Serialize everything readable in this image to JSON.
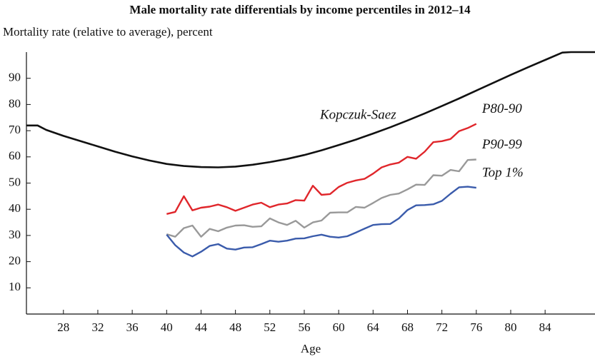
{
  "chart_data": {
    "type": "line",
    "title": "Male mortality rate differentials by income percentiles in 2012–14",
    "y_axis_label": "Mortality rate (relative to average), percent",
    "x_axis_label": "Age",
    "xlim": [
      23.7,
      89.8
    ],
    "xticks": [
      28,
      32,
      36,
      40,
      44,
      48,
      52,
      56,
      60,
      64,
      68,
      72,
      76,
      80,
      84
    ],
    "ylim": [
      0,
      100
    ],
    "yticks": [
      10,
      20,
      30,
      40,
      50,
      60,
      70,
      80,
      90
    ],
    "series": [
      {
        "name": "Kopczuk-Saez",
        "color": "#111111",
        "x": [
          23.7,
          25,
          26,
          28,
          30,
          32,
          34,
          36,
          38,
          40,
          42,
          44,
          46,
          48,
          50,
          52,
          54,
          56,
          58,
          60,
          62,
          64,
          66,
          68,
          70,
          72,
          74,
          76,
          78,
          80,
          82,
          84,
          86,
          87,
          89.8
        ],
        "values": [
          72,
          72,
          70.3,
          68,
          66,
          64,
          62,
          60.2,
          58.6,
          57.3,
          56.5,
          56.1,
          56,
          56.3,
          57,
          58,
          59.2,
          60.7,
          62.5,
          64.5,
          66.6,
          68.9,
          71.3,
          73.9,
          76.6,
          79.4,
          82.3,
          85.3,
          88.3,
          91.3,
          94.2,
          97,
          99.8,
          100,
          100
        ]
      },
      {
        "name": "P80-90",
        "color": "#e0262b",
        "x": [
          40,
          41,
          42,
          43,
          44,
          45,
          46,
          47,
          48,
          49,
          50,
          51,
          52,
          53,
          54,
          55,
          56,
          57,
          58,
          59,
          60,
          61,
          62,
          63,
          64,
          65,
          66,
          67,
          68,
          69,
          70,
          71,
          72,
          73,
          74,
          75,
          76
        ],
        "values": [
          38.2,
          39,
          45,
          39.6,
          40.6,
          41,
          41.8,
          40.8,
          39.4,
          40.6,
          41.8,
          42.5,
          40.8,
          41.8,
          42.2,
          43.5,
          43.3,
          49,
          45.5,
          45.8,
          48.5,
          50.1,
          51,
          51.6,
          53.6,
          56,
          57.1,
          57.8,
          60,
          59.3,
          62,
          65.6,
          66,
          66.8,
          69.8,
          71,
          72.6
        ]
      },
      {
        "name": "P90-99",
        "color": "#999999",
        "x": [
          40,
          41,
          42,
          43,
          44,
          45,
          46,
          47,
          48,
          49,
          50,
          51,
          52,
          53,
          54,
          55,
          56,
          57,
          58,
          59,
          60,
          61,
          62,
          63,
          64,
          65,
          66,
          67,
          68,
          69,
          70,
          71,
          72,
          73,
          74,
          75,
          76
        ],
        "values": [
          30.5,
          29.5,
          32.8,
          33.8,
          29.5,
          32.5,
          31.6,
          33,
          33.8,
          33.9,
          33.3,
          33.5,
          36.5,
          35,
          34,
          35.6,
          33,
          35,
          35.7,
          38.7,
          38.8,
          38.8,
          40.9,
          40.6,
          42.4,
          44.3,
          45.5,
          46,
          47.6,
          49.4,
          49.3,
          53,
          52.8,
          55,
          54.5,
          58.8,
          59
        ]
      },
      {
        "name": "Top 1%",
        "color": "#3a5bab",
        "x": [
          40,
          41,
          42,
          43,
          44,
          45,
          46,
          47,
          48,
          49,
          50,
          51,
          52,
          53,
          54,
          55,
          56,
          57,
          58,
          59,
          60,
          61,
          62,
          63,
          64,
          65,
          66,
          67,
          68,
          69,
          70,
          71,
          72,
          73,
          74,
          75,
          76
        ],
        "values": [
          30.3,
          26.3,
          23.5,
          22,
          23.8,
          26,
          26.7,
          25,
          24.6,
          25.4,
          25.5,
          26.7,
          28,
          27.6,
          28,
          28.8,
          28.9,
          29.7,
          30.3,
          29.5,
          29.2,
          29.7,
          31.1,
          32.6,
          34,
          34.3,
          34.4,
          36.5,
          39.7,
          41.5,
          41.6,
          41.9,
          43.2,
          45.9,
          48.4,
          48.6,
          48.2
        ]
      }
    ]
  }
}
